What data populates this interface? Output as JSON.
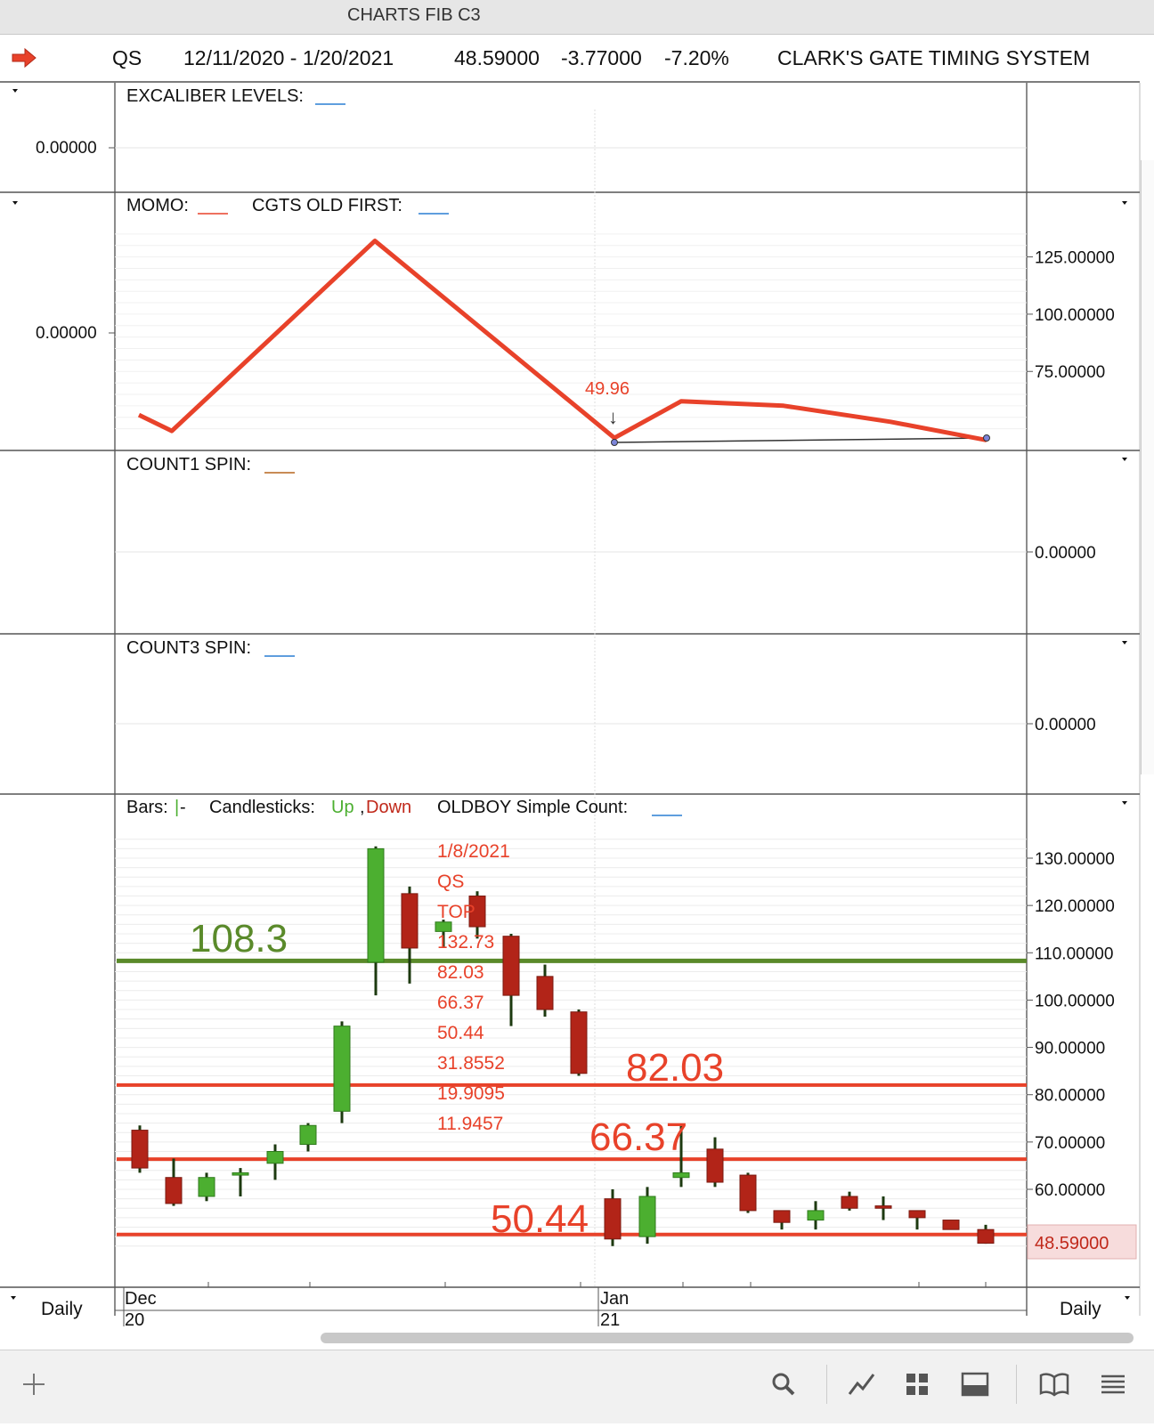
{
  "window": {
    "title": "CHARTS FIB C3"
  },
  "header": {
    "symbol": "QS",
    "date_range": "12/11/2020 - 1/20/2021",
    "last": "48.59000",
    "change": "-3.77000",
    "change_pct": "-7.20%",
    "system": "CLARK'S GATE TIMING SYSTEM"
  },
  "panels": {
    "excaliber": {
      "label": "EXCALIBER LEVELS:",
      "left_value": "0.00000"
    },
    "momo": {
      "label1": "MOMO:",
      "label2": "CGTS OLD FIRST:",
      "left_value": "0.00000",
      "annotation": "49.96",
      "axis": [
        "125.00000",
        "100.00000",
        "75.00000"
      ]
    },
    "count1": {
      "label": "COUNT1 SPIN:",
      "axis": [
        "0.00000"
      ]
    },
    "count3": {
      "label": "COUNT3 SPIN:",
      "axis": [
        "0.00000"
      ]
    },
    "price": {
      "label_bars": "Bars:",
      "label_candles": "Candlesticks:",
      "label_up": "Up",
      "label_comma": ",",
      "label_down": "Down",
      "label_oldboy": "OLDBOY Simple Count:",
      "axis": [
        "130.00000",
        "120.00000",
        "110.00000",
        "100.00000",
        "90.00000",
        "80.00000",
        "70.00000",
        "60.00000"
      ],
      "last_price": "48.59000",
      "notes": [
        "1/8/2021",
        "QS",
        "TOP",
        "132.73",
        "82.03",
        "66.37",
        "50.44",
        "31.8552",
        "19.9095",
        "11.9457"
      ],
      "level_labels": {
        "green": "108.3",
        "r1": "82.03",
        "r2": "66.37",
        "r3": "50.44"
      }
    }
  },
  "xaxis": {
    "m1": "Dec",
    "y1": "20",
    "m2": "Jan",
    "y2": "21"
  },
  "period_left": "Daily",
  "period_right": "Daily",
  "colors": {
    "up": "#4caf30",
    "down": "#b22418",
    "level_green": "#5a8a2a",
    "level_red": "#e8422a",
    "momo": "#e8422a"
  },
  "chart_data": [
    {
      "type": "line",
      "title": "MOMO",
      "series": [
        {
          "name": "MOMO",
          "values": [
            56,
            49,
            132,
            46,
            62,
            60,
            53,
            45
          ]
        }
      ],
      "ylim": [
        44,
        140
      ],
      "annotation": {
        "text": "49.96",
        "at_index": 3
      }
    },
    {
      "type": "candlestick",
      "title": "",
      "ylim": [
        45,
        134
      ],
      "candles": [
        {
          "o": 72.5,
          "h": 73.5,
          "l": 63.5,
          "c": 64.5
        },
        {
          "o": 62.5,
          "h": 66.5,
          "l": 56.5,
          "c": 57.0
        },
        {
          "o": 58.5,
          "h": 63.5,
          "l": 57.5,
          "c": 62.5
        },
        {
          "o": 63.0,
          "h": 64.5,
          "l": 58.5,
          "c": 63.5
        },
        {
          "o": 65.5,
          "h": 69.5,
          "l": 62.0,
          "c": 68.0
        },
        {
          "o": 69.5,
          "h": 74.0,
          "l": 68.0,
          "c": 73.5
        },
        {
          "o": 76.5,
          "h": 95.5,
          "l": 74.0,
          "c": 94.5
        },
        {
          "o": 108.0,
          "h": 132.5,
          "l": 101.0,
          "c": 132.0
        },
        {
          "o": 122.5,
          "h": 124.0,
          "l": 103.5,
          "c": 111.0
        },
        {
          "o": 114.5,
          "h": 117.0,
          "l": 111.0,
          "c": 116.5
        },
        {
          "o": 122.0,
          "h": 123.0,
          "l": 113.0,
          "c": 115.5
        },
        {
          "o": 113.5,
          "h": 114.0,
          "l": 94.5,
          "c": 101.0
        },
        {
          "o": 105.0,
          "h": 107.5,
          "l": 96.5,
          "c": 98.0
        },
        {
          "o": 97.5,
          "h": 98.0,
          "l": 84.0,
          "c": 84.5
        },
        {
          "o": 58.0,
          "h": 60.0,
          "l": 48.0,
          "c": 49.5
        },
        {
          "o": 50.0,
          "h": 60.5,
          "l": 48.5,
          "c": 58.5
        },
        {
          "o": 62.5,
          "h": 73.5,
          "l": 60.5,
          "c": 63.5
        },
        {
          "o": 68.5,
          "h": 71.0,
          "l": 60.5,
          "c": 61.5
        },
        {
          "o": 63.0,
          "h": 63.5,
          "l": 55.0,
          "c": 55.5
        },
        {
          "o": 55.5,
          "h": 55.5,
          "l": 51.5,
          "c": 53.0
        },
        {
          "o": 53.5,
          "h": 57.5,
          "l": 51.5,
          "c": 55.5
        },
        {
          "o": 58.5,
          "h": 59.5,
          "l": 55.5,
          "c": 56.0
        },
        {
          "o": 56.5,
          "h": 58.5,
          "l": 53.5,
          "c": 56.0
        },
        {
          "o": 55.5,
          "h": 55.5,
          "l": 51.5,
          "c": 54.0
        },
        {
          "o": 53.5,
          "h": 53.5,
          "l": 51.5,
          "c": 51.5
        },
        {
          "o": 51.5,
          "h": 52.5,
          "l": 48.5,
          "c": 48.6
        }
      ],
      "levels": [
        {
          "value": 108.3,
          "color": "green"
        },
        {
          "value": 82.03,
          "color": "red"
        },
        {
          "value": 66.37,
          "color": "red"
        },
        {
          "value": 50.44,
          "color": "red"
        }
      ]
    }
  ]
}
